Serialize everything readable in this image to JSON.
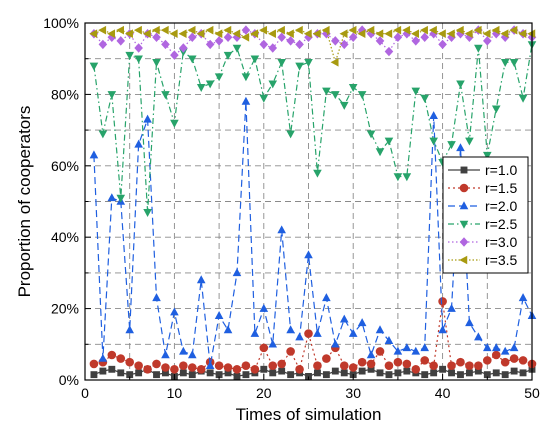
{
  "chart_data": {
    "type": "line",
    "xlabel": "Times of simulation",
    "ylabel": "Proportion of cooperators",
    "xlim": [
      0,
      50
    ],
    "ylim": [
      0,
      100
    ],
    "xticks": [
      0,
      10,
      20,
      30,
      40,
      50
    ],
    "yticks": [
      0,
      20,
      40,
      60,
      80,
      100
    ],
    "ytick_labels": [
      "0%",
      "20%",
      "40%",
      "60%",
      "80%",
      "100%"
    ],
    "grid": true,
    "legend_position": "right",
    "x": [
      1,
      2,
      3,
      4,
      5,
      6,
      7,
      8,
      9,
      10,
      11,
      12,
      13,
      14,
      15,
      16,
      17,
      18,
      19,
      20,
      21,
      22,
      23,
      24,
      25,
      26,
      27,
      28,
      29,
      30,
      31,
      32,
      33,
      34,
      35,
      36,
      37,
      38,
      39,
      40,
      41,
      42,
      43,
      44,
      45,
      46,
      47,
      48,
      49,
      50
    ],
    "series": [
      {
        "name": "r=1.0",
        "color": "#404040",
        "marker": "square",
        "dash": "",
        "values": [
          1.5,
          2.5,
          3,
          2,
          1.5,
          2,
          3,
          1.5,
          2,
          1,
          2,
          1.5,
          2.5,
          2,
          1.5,
          2,
          1,
          1.5,
          2,
          3,
          2,
          2.5,
          1.5,
          2,
          1,
          2,
          1.5,
          2.5,
          2,
          1.5,
          2.5,
          3,
          2,
          1.5,
          2,
          2.5,
          2,
          1.5,
          2,
          3,
          2,
          1.5,
          2,
          2.5,
          1.5,
          2,
          1.5,
          2.5,
          2,
          3
        ]
      },
      {
        "name": "r=1.5",
        "color": "#c0392b",
        "marker": "circle",
        "dash": "2,3",
        "values": [
          4.5,
          5,
          7,
          6,
          5,
          4,
          3,
          4.5,
          3.5,
          3,
          4,
          3.5,
          3,
          5,
          4,
          3.5,
          3,
          4,
          3,
          9,
          4,
          4.5,
          8,
          3,
          13,
          4,
          6,
          9,
          4,
          3.5,
          5,
          4.5,
          8,
          4,
          5,
          4.5,
          3,
          5.5,
          4,
          22,
          4,
          5,
          4,
          4,
          5.5,
          7,
          5,
          6,
          5.5,
          4.5
        ]
      },
      {
        "name": "r=2.0",
        "color": "#1f5fe0",
        "marker": "triangle-up",
        "dash": "7,4",
        "values": [
          63,
          6,
          51,
          50,
          14,
          66,
          73,
          23,
          7,
          19,
          8,
          7,
          28,
          4,
          18,
          14,
          30,
          78,
          13,
          20,
          10,
          42,
          14,
          12,
          35,
          13,
          23,
          10,
          17,
          13,
          16,
          7,
          14,
          11,
          8,
          9,
          8,
          9,
          74,
          14,
          20,
          65,
          16,
          12,
          9,
          9,
          8,
          9,
          23,
          18
        ]
      },
      {
        "name": "r=2.5",
        "color": "#27a36a",
        "marker": "triangle-down",
        "dash": "6,3,1.5,3",
        "values": [
          88,
          69,
          80,
          51,
          91,
          90,
          47,
          89,
          80,
          72,
          92,
          90,
          82,
          83,
          85,
          91,
          93,
          85,
          90,
          79,
          83,
          89,
          69,
          88,
          89,
          58,
          81,
          80,
          77,
          82,
          80,
          69,
          64,
          67,
          57,
          57,
          81,
          79,
          67,
          61,
          66,
          83,
          67,
          93,
          63,
          76,
          89,
          89,
          79,
          94
        ]
      },
      {
        "name": "r=3.0",
        "color": "#b066e0",
        "marker": "diamond",
        "dash": "1.5,2.5",
        "values": [
          97,
          94,
          96,
          95,
          97,
          93,
          97,
          96,
          94,
          91,
          93,
          96,
          97,
          94,
          95,
          96,
          96,
          98,
          97,
          94,
          93,
          96,
          95,
          94,
          96,
          97,
          97,
          95,
          94,
          96,
          98,
          97,
          95,
          92,
          96,
          97,
          95,
          96,
          97,
          94,
          96,
          97,
          96,
          98,
          95,
          97,
          96,
          98,
          97,
          96
        ]
      },
      {
        "name": "r=3.5",
        "color": "#a89a10",
        "marker": "triangle-left",
        "dash": "1.5,2",
        "values": [
          97,
          98,
          97,
          98,
          97,
          98,
          97,
          98,
          98,
          97,
          97,
          98,
          97,
          98,
          97,
          98,
          97,
          96,
          97,
          98,
          97,
          98,
          97,
          98,
          97,
          97,
          98,
          89,
          97,
          98,
          97,
          98,
          97,
          97,
          98,
          98,
          97,
          98,
          98,
          97,
          97,
          98,
          97,
          98,
          97,
          98,
          97,
          98,
          97,
          97
        ]
      }
    ]
  }
}
